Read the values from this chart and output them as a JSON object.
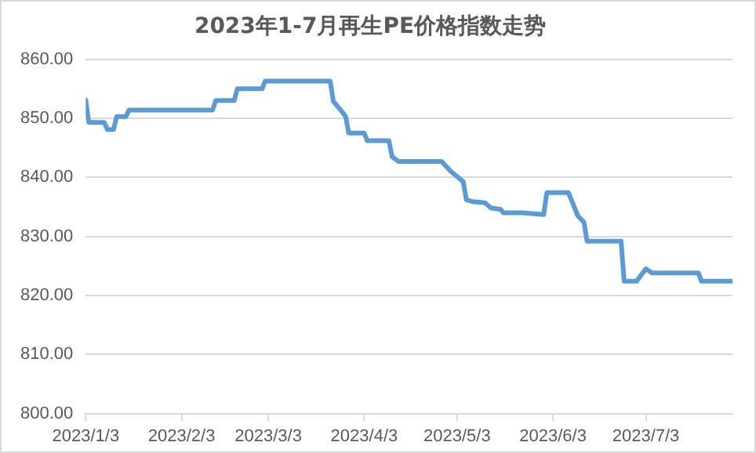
{
  "chart_data": {
    "type": "line",
    "title": "2023年1-7月再生PE价格指数走势",
    "x": [
      "2023-01-03",
      "2023-01-04",
      "2023-01-09",
      "2023-01-10",
      "2023-01-12",
      "2023-01-13",
      "2023-01-16",
      "2023-01-17",
      "2023-02-13",
      "2023-02-14",
      "2023-02-20",
      "2023-02-21",
      "2023-03-01",
      "2023-03-02",
      "2023-03-23",
      "2023-03-24",
      "2023-03-27",
      "2023-03-28",
      "2023-03-29",
      "2023-04-03",
      "2023-04-04",
      "2023-04-11",
      "2023-04-12",
      "2023-04-14",
      "2023-04-28",
      "2023-05-01",
      "2023-05-04",
      "2023-05-05",
      "2023-05-06",
      "2023-05-08",
      "2023-05-12",
      "2023-05-14",
      "2023-05-17",
      "2023-05-18",
      "2023-05-24",
      "2023-05-31",
      "2023-06-01",
      "2023-06-08",
      "2023-06-11",
      "2023-06-13",
      "2023-06-14",
      "2023-06-25",
      "2023-06-26",
      "2023-06-30",
      "2023-07-03",
      "2023-07-05",
      "2023-07-20",
      "2023-07-21",
      "2023-07-31"
    ],
    "series": [
      {
        "color": "#5b9bd5",
        "values": [
          853.1,
          849.3,
          849.3,
          848.1,
          848.1,
          850.3,
          850.3,
          851.4,
          851.4,
          853.0,
          853.0,
          855.0,
          855.0,
          856.3,
          856.3,
          852.9,
          851.0,
          850.3,
          847.5,
          847.5,
          846.2,
          846.2,
          843.5,
          842.7,
          842.7,
          841.0,
          839.7,
          839.3,
          836.2,
          835.9,
          835.7,
          834.8,
          834.6,
          834.0,
          834.0,
          833.7,
          837.4,
          837.4,
          833.5,
          832.4,
          829.2,
          829.2,
          822.4,
          822.4,
          824.5,
          823.8,
          823.8,
          822.4,
          822.4
        ]
      }
    ],
    "xlim": [
      "2023-01-03",
      "2023-07-31"
    ],
    "xticks": [
      {
        "value": "2023-01-03",
        "label": "2023/1/3"
      },
      {
        "value": "2023-02-03",
        "label": "2023/2/3"
      },
      {
        "value": "2023-03-03",
        "label": "2023/3/3"
      },
      {
        "value": "2023-04-03",
        "label": "2023/4/3"
      },
      {
        "value": "2023-05-03",
        "label": "2023/5/3"
      },
      {
        "value": "2023-06-03",
        "label": "2023/6/3"
      },
      {
        "value": "2023-07-03",
        "label": "2023/7/3"
      }
    ],
    "ylim": [
      800,
      860
    ],
    "yticks": [
      {
        "value": 800,
        "label": "800.00"
      },
      {
        "value": 810,
        "label": "810.00"
      },
      {
        "value": 820,
        "label": "820.00"
      },
      {
        "value": 830,
        "label": "830.00"
      },
      {
        "value": 840,
        "label": "840.00"
      },
      {
        "value": 850,
        "label": "850.00"
      },
      {
        "value": 860,
        "label": "860.00"
      }
    ],
    "grid": "y",
    "legend": false,
    "marker": "none",
    "line_style": "solid"
  }
}
